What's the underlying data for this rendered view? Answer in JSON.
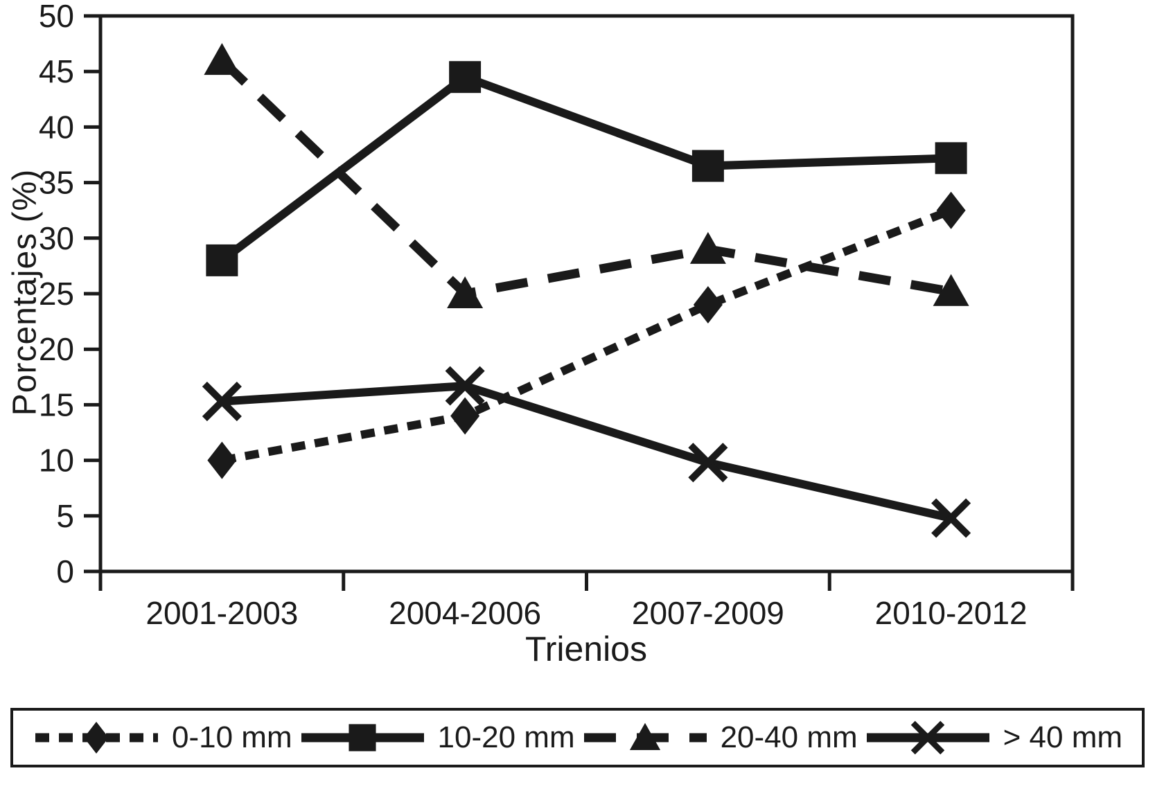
{
  "chart_data": {
    "type": "line",
    "title": "",
    "xlabel": "Trienios",
    "ylabel": "Porcentajes (%)",
    "categories": [
      "2001-2003",
      "2004-2006",
      "2007-2009",
      "2010-2012"
    ],
    "ylim": [
      0,
      50
    ],
    "yticks": [
      0,
      5,
      10,
      15,
      20,
      25,
      30,
      35,
      40,
      45,
      50
    ],
    "grid": false,
    "legend_position": "bottom",
    "series": [
      {
        "name": "0-10 mm",
        "marker": "diamond",
        "line": "dotted",
        "values": [
          10,
          14,
          24,
          32.5
        ]
      },
      {
        "name": "10-20 mm",
        "marker": "square",
        "line": "solid",
        "values": [
          28,
          44.5,
          36.5,
          37.2
        ]
      },
      {
        "name": "20-40 mm",
        "marker": "triangle",
        "line": "dashed",
        "values": [
          46,
          25,
          29,
          25.2
        ]
      },
      {
        "name": "> 40 mm",
        "marker": "x",
        "line": "solid",
        "values": [
          15.3,
          16.7,
          9.8,
          4.8
        ]
      }
    ],
    "colors": {
      "line": "#1a1a1a",
      "background": "#ffffff"
    }
  }
}
